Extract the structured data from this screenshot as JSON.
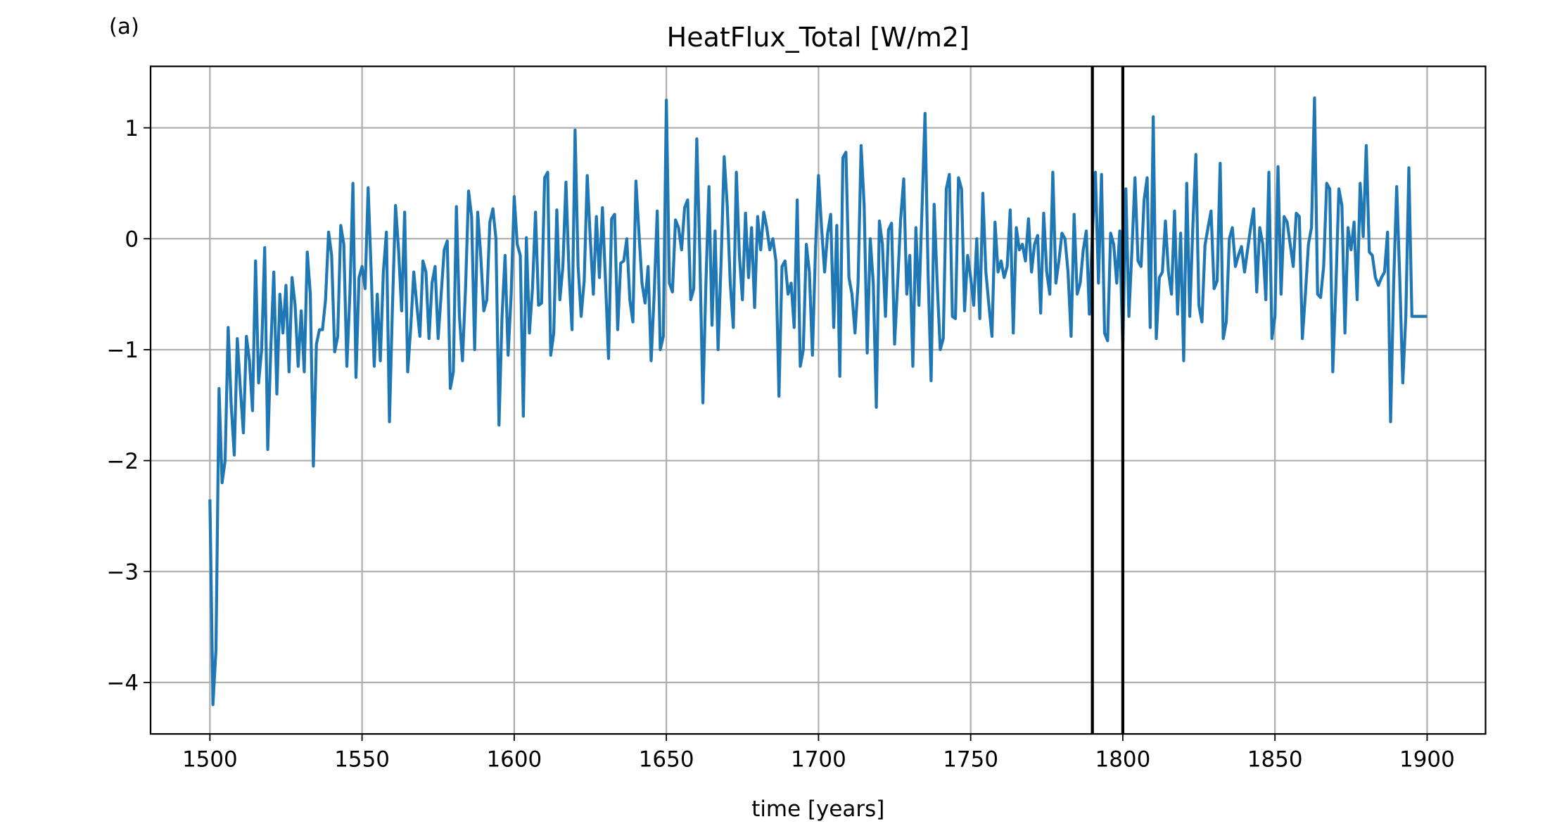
{
  "chart_data": {
    "type": "line",
    "panel_label": "(a)",
    "title": "HeatFlux_Total [W/m2]",
    "x_label": "time [years]",
    "x": [
      1500,
      1501,
      1502,
      1503,
      1504,
      1505,
      1506,
      1507,
      1508,
      1509,
      1510,
      1511,
      1512,
      1513,
      1514,
      1515,
      1516,
      1517,
      1518,
      1519,
      1520,
      1521,
      1522,
      1523,
      1524,
      1525,
      1526,
      1527,
      1528,
      1529,
      1530,
      1531,
      1532,
      1533,
      1534,
      1535,
      1536,
      1537,
      1538,
      1539,
      1540,
      1541,
      1542,
      1543,
      1544,
      1545,
      1546,
      1547,
      1548,
      1549,
      1550,
      1551,
      1552,
      1553,
      1554,
      1555,
      1556,
      1557,
      1558,
      1559,
      1560,
      1561,
      1562,
      1563,
      1564,
      1565,
      1566,
      1567,
      1568,
      1569,
      1570,
      1571,
      1572,
      1573,
      1574,
      1575,
      1576,
      1577,
      1578,
      1579,
      1580,
      1581,
      1582,
      1583,
      1584,
      1585,
      1586,
      1587,
      1588,
      1589,
      1590,
      1591,
      1592,
      1593,
      1594,
      1595,
      1596,
      1597,
      1598,
      1599,
      1600,
      1601,
      1602,
      1603,
      1604,
      1605,
      1606,
      1607,
      1608,
      1609,
      1610,
      1611,
      1612,
      1613,
      1614,
      1615,
      1616,
      1617,
      1618,
      1619,
      1620,
      1621,
      1622,
      1623,
      1624,
      1625,
      1626,
      1627,
      1628,
      1629,
      1630,
      1631,
      1632,
      1633,
      1634,
      1635,
      1636,
      1637,
      1638,
      1639,
      1640,
      1641,
      1642,
      1643,
      1644,
      1645,
      1646,
      1647,
      1648,
      1649,
      1650,
      1651,
      1652,
      1653,
      1654,
      1655,
      1656,
      1657,
      1658,
      1659,
      1660,
      1661,
      1662,
      1663,
      1664,
      1665,
      1666,
      1667,
      1668,
      1669,
      1670,
      1671,
      1672,
      1673,
      1674,
      1675,
      1676,
      1677,
      1678,
      1679,
      1680,
      1681,
      1682,
      1683,
      1684,
      1685,
      1686,
      1687,
      1688,
      1689,
      1690,
      1691,
      1692,
      1693,
      1694,
      1695,
      1696,
      1697,
      1698,
      1699,
      1700,
      1701,
      1702,
      1703,
      1704,
      1705,
      1706,
      1707,
      1708,
      1709,
      1710,
      1711,
      1712,
      1713,
      1714,
      1715,
      1716,
      1717,
      1718,
      1719,
      1720,
      1721,
      1722,
      1723,
      1724,
      1725,
      1726,
      1727,
      1728,
      1729,
      1730,
      1731,
      1732,
      1733,
      1734,
      1735,
      1736,
      1737,
      1738,
      1739,
      1740,
      1741,
      1742,
      1743,
      1744,
      1745,
      1746,
      1747,
      1748,
      1749,
      1750,
      1751,
      1752,
      1753,
      1754,
      1755,
      1756,
      1757,
      1758,
      1759,
      1760,
      1761,
      1762,
      1763,
      1764,
      1765,
      1766,
      1767,
      1768,
      1769,
      1770,
      1771,
      1772,
      1773,
      1774,
      1775,
      1776,
      1777,
      1778,
      1779,
      1780,
      1781,
      1782,
      1783,
      1784,
      1785,
      1786,
      1787,
      1788,
      1789,
      1790,
      1791,
      1792,
      1793,
      1794,
      1795,
      1796,
      1797,
      1798,
      1799,
      1800,
      1801,
      1802,
      1803,
      1804,
      1805,
      1806,
      1807,
      1808,
      1809,
      1810,
      1811,
      1812,
      1813,
      1814,
      1815,
      1816,
      1817,
      1818,
      1819,
      1820,
      1821,
      1822,
      1823,
      1824,
      1825,
      1826,
      1827,
      1828,
      1829,
      1830,
      1831,
      1832,
      1833,
      1834,
      1835,
      1836,
      1837,
      1838,
      1839,
      1840,
      1841,
      1842,
      1843,
      1844,
      1845,
      1846,
      1847,
      1848,
      1849,
      1850,
      1851,
      1852,
      1853,
      1854,
      1855,
      1856,
      1857,
      1858,
      1859,
      1860,
      1861,
      1862,
      1863,
      1864,
      1865,
      1866,
      1867,
      1868,
      1869,
      1870,
      1871,
      1872,
      1873,
      1874,
      1875,
      1876,
      1877,
      1878,
      1879,
      1880,
      1881,
      1882,
      1883,
      1884,
      1885,
      1886,
      1887,
      1888,
      1889,
      1890,
      1891,
      1892,
      1893,
      1894,
      1895,
      1896,
      1897,
      1898,
      1899,
      1900
    ],
    "series": [
      {
        "name": "HeatFlux_Total",
        "color": "#1f77b4",
        "values": [
          -2.35,
          -4.2,
          -3.7,
          -1.35,
          -2.2,
          -2.0,
          -0.8,
          -1.5,
          -1.95,
          -0.9,
          -1.35,
          -1.75,
          -0.88,
          -1.1,
          -1.55,
          -0.2,
          -1.3,
          -1.0,
          -0.08,
          -1.9,
          -1.0,
          -0.3,
          -1.4,
          -0.5,
          -0.85,
          -0.42,
          -1.2,
          -0.35,
          -0.6,
          -1.15,
          -0.65,
          -1.2,
          -0.12,
          -0.5,
          -2.05,
          -0.95,
          -0.82,
          -0.82,
          -0.55,
          0.06,
          -0.15,
          -1.02,
          -0.88,
          0.12,
          -0.05,
          -1.15,
          -0.5,
          0.5,
          -1.25,
          -0.35,
          -0.25,
          -0.45,
          0.46,
          -0.3,
          -1.15,
          -0.5,
          -1.1,
          -0.3,
          0.06,
          -1.65,
          -0.6,
          0.3,
          -0.1,
          -0.65,
          0.24,
          -1.2,
          -0.8,
          -0.3,
          -0.6,
          -0.88,
          -0.2,
          -0.3,
          -0.9,
          -0.4,
          -0.25,
          -0.9,
          -0.5,
          -0.1,
          -0.02,
          -1.35,
          -1.2,
          0.29,
          -0.7,
          -1.1,
          -0.45,
          0.43,
          0.2,
          -1.0,
          0.24,
          -0.15,
          -0.65,
          -0.55,
          0.15,
          0.27,
          0.0,
          -1.68,
          -0.7,
          -0.15,
          -1.05,
          -0.5,
          0.38,
          -0.05,
          -0.15,
          -1.6,
          0.01,
          -0.85,
          -0.45,
          0.24,
          -0.6,
          -0.58,
          0.55,
          0.6,
          -1.05,
          -0.85,
          0.26,
          -0.55,
          -0.25,
          0.51,
          -0.3,
          -0.82,
          0.98,
          -0.25,
          -0.7,
          -0.38,
          0.57,
          0.0,
          -0.5,
          0.2,
          -0.35,
          0.28,
          -0.38,
          -1.08,
          0.18,
          0.22,
          -0.82,
          -0.22,
          -0.2,
          0.0,
          -0.55,
          -0.75,
          0.52,
          0.05,
          -0.4,
          -0.58,
          -0.25,
          -1.1,
          -0.5,
          0.25,
          -1.0,
          -0.88,
          1.25,
          -0.4,
          -0.48,
          0.17,
          0.1,
          -0.1,
          0.28,
          0.35,
          -0.55,
          -0.45,
          0.9,
          -0.15,
          -1.48,
          -0.4,
          0.47,
          -0.78,
          0.07,
          -1.0,
          -0.2,
          0.74,
          0.3,
          -0.4,
          -0.8,
          0.6,
          -0.15,
          -0.55,
          0.23,
          -0.35,
          0.1,
          -0.62,
          0.2,
          -0.1,
          0.24,
          0.1,
          -0.1,
          0.0,
          -0.2,
          -1.42,
          -0.25,
          -0.2,
          -0.5,
          -0.4,
          -0.8,
          0.35,
          -1.15,
          -1.0,
          -0.05,
          -0.3,
          -1.05,
          -0.1,
          0.57,
          0.1,
          -0.3,
          0.05,
          0.22,
          -0.8,
          0.12,
          -1.24,
          0.73,
          0.78,
          -0.35,
          -0.5,
          -0.85,
          -0.4,
          0.84,
          0.3,
          -1.03,
          0.0,
          -0.4,
          -1.52,
          0.16,
          -0.05,
          -0.7,
          0.08,
          0.14,
          -0.95,
          -0.4,
          0.18,
          0.54,
          -0.5,
          -0.15,
          -1.15,
          0.1,
          -0.6,
          0.26,
          1.13,
          -0.3,
          -1.28,
          0.31,
          -0.4,
          -1.0,
          -0.9,
          0.45,
          0.58,
          -0.7,
          -0.72,
          0.55,
          0.45,
          -0.65,
          -0.15,
          -0.35,
          -0.6,
          0.0,
          -0.72,
          0.41,
          -0.3,
          -0.6,
          -0.88,
          0.15,
          -0.3,
          -0.2,
          -0.35,
          -0.25,
          0.26,
          -0.85,
          0.1,
          -0.1,
          -0.05,
          -0.2,
          0.18,
          -0.3,
          -0.05,
          0.03,
          -0.67,
          0.23,
          -0.3,
          -0.5,
          0.6,
          -0.4,
          -0.2,
          0.05,
          0.0,
          -0.3,
          -0.88,
          0.22,
          -0.5,
          -0.4,
          -0.1,
          0.07,
          -0.68,
          0.05,
          0.6,
          -0.4,
          0.58,
          -0.85,
          -0.92,
          0.05,
          -0.05,
          -0.4,
          0.07,
          -1.0,
          0.45,
          -0.7,
          -0.1,
          0.55,
          -0.2,
          -0.25,
          0.35,
          0.55,
          -0.8,
          1.1,
          -0.9,
          -0.35,
          -0.3,
          0.16,
          -0.3,
          -0.5,
          0.25,
          -0.68,
          0.05,
          -1.1,
          0.5,
          -0.7,
          0.1,
          0.76,
          -0.6,
          -0.75,
          -0.06,
          0.1,
          0.25,
          -0.45,
          -0.38,
          0.68,
          -0.9,
          -0.75,
          0.0,
          0.1,
          -0.25,
          -0.15,
          -0.07,
          -0.3,
          -0.1,
          0.1,
          0.27,
          -0.48,
          0.1,
          -0.05,
          -0.55,
          0.6,
          -0.9,
          -0.7,
          0.65,
          -0.5,
          0.2,
          0.15,
          -0.05,
          -0.25,
          0.23,
          0.2,
          -0.9,
          -0.5,
          -0.05,
          0.1,
          1.27,
          -0.5,
          -0.53,
          -0.25,
          0.5,
          0.45,
          -1.2,
          -0.45,
          0.45,
          0.3,
          -0.85,
          0.1,
          -0.1,
          0.15,
          -0.55,
          0.5,
          0.02,
          0.84,
          -0.12,
          -0.15,
          -0.35,
          -0.42,
          -0.35,
          -0.3,
          0.06,
          -1.65,
          -0.4,
          0.47,
          -0.35,
          -1.3,
          -0.7,
          0.64,
          -0.7,
          -0.7,
          -0.7,
          -0.7,
          -0.7,
          -0.7
        ]
      }
    ],
    "vlines": [
      1790,
      1800
    ],
    "vline_color": "#000000",
    "xlim": [
      1480.5,
      1919.2
    ],
    "ylim": [
      -4.464,
      1.554
    ],
    "xticks": [
      1500,
      1550,
      1600,
      1650,
      1700,
      1750,
      1800,
      1850,
      1900
    ],
    "yticks": [
      {
        "value": -4,
        "label": "−4"
      },
      {
        "value": -3,
        "label": "−3"
      },
      {
        "value": -2,
        "label": "−2"
      },
      {
        "value": -1,
        "label": "−1"
      },
      0,
      1
    ],
    "grid": true
  }
}
